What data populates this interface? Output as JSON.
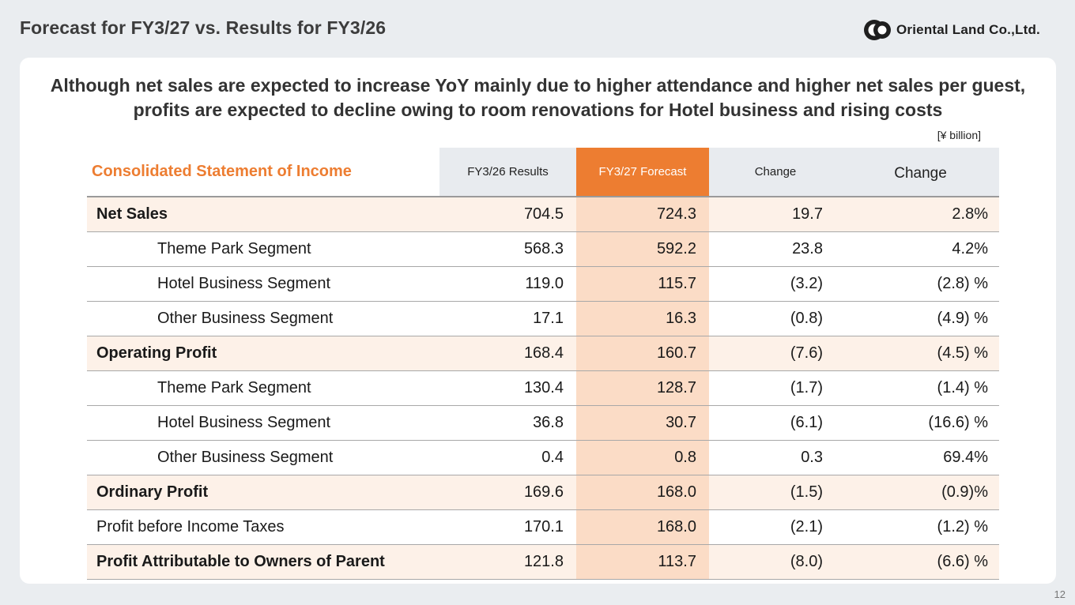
{
  "slide": {
    "title": "Forecast for FY3/27 vs. Results for FY3/26",
    "logo_text": "Oriental Land Co.,Ltd.",
    "headline": "Although net sales are expected to increase YoY mainly due to higher attendance and higher net sales per guest, profits are expected to decline owing to room renovations for Hotel business and rising costs",
    "unit": "[¥ billion]",
    "page_number": "12"
  },
  "table": {
    "title": "Consolidated Statement of Income",
    "headers": [
      "FY3/26 Results",
      "FY3/27  Forecast",
      "Change",
      "Change"
    ],
    "rows": [
      {
        "label": "Net Sales",
        "type": "main",
        "values": [
          "704.5",
          "724.3",
          "19.7",
          "2.8%"
        ]
      },
      {
        "label": "Theme Park Segment",
        "type": "sub",
        "values": [
          "568.3",
          "592.2",
          "23.8",
          "4.2%"
        ]
      },
      {
        "label": "Hotel Business Segment",
        "type": "sub",
        "values": [
          "119.0",
          "115.7",
          "(3.2)",
          "(2.8) %"
        ]
      },
      {
        "label": "Other Business Segment",
        "type": "sub",
        "values": [
          "17.1",
          "16.3",
          "(0.8)",
          "(4.9) %"
        ]
      },
      {
        "label": "Operating Profit",
        "type": "main",
        "values": [
          "168.4",
          "160.7",
          "(7.6)",
          "(4.5) %"
        ]
      },
      {
        "label": "Theme Park Segment",
        "type": "sub",
        "values": [
          "130.4",
          "128.7",
          "(1.7)",
          "(1.4) %"
        ]
      },
      {
        "label": "Hotel Business Segment",
        "type": "sub",
        "values": [
          "36.8",
          "30.7",
          "(6.1)",
          "(16.6) %"
        ]
      },
      {
        "label": "Other Business Segment",
        "type": "sub",
        "values": [
          "0.4",
          "0.8",
          "0.3",
          "69.4%"
        ]
      },
      {
        "label": "Ordinary Profit",
        "type": "main",
        "values": [
          "169.6",
          "168.0",
          "(1.5)",
          "(0.9)%"
        ]
      },
      {
        "label": "Profit before Income Taxes",
        "type": "plain",
        "values": [
          "170.1",
          "168.0",
          "(2.1)",
          "(1.2) %"
        ]
      },
      {
        "label": "Profit Attributable to Owners of Parent",
        "type": "main",
        "values": [
          "121.8",
          "113.7",
          "(8.0)",
          "(6.6) %"
        ]
      }
    ]
  },
  "colors": {
    "accent_orange": "#ed7d31",
    "forecast_cell": "#fbdcc6",
    "main_row": "#fdf1e8",
    "header_gray": "#e8ebef"
  }
}
